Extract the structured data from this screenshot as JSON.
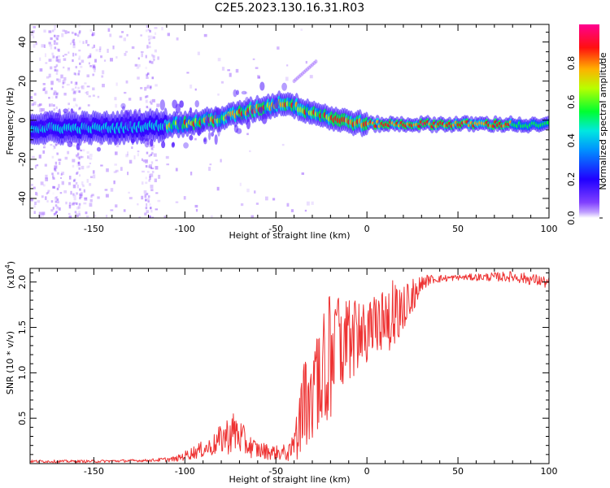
{
  "title": "C2E5.2023.130.16.31.R03",
  "chart_data": [
    {
      "type": "heatmap",
      "xlabel": "Height of straight line (km)",
      "ylabel": "Frequency (Hz)",
      "xlim": [
        -185,
        100
      ],
      "ylim": [
        -50,
        49
      ],
      "x_ticks": [
        -150,
        -100,
        -50,
        0,
        50,
        100
      ],
      "x_tick_labels": [
        "-150",
        "-100",
        "-50",
        "0",
        "50",
        "100"
      ],
      "y_ticks": [
        -40,
        -20,
        0,
        20,
        40
      ],
      "y_tick_labels": [
        "-40",
        "-20",
        "0",
        "20",
        "40"
      ],
      "ridge": {
        "description": "spectral ridge (frequency centre) vs height",
        "x": [
          -185,
          -160,
          -140,
          -120,
          -100,
          -80,
          -60,
          -45,
          -30,
          -15,
          0,
          20,
          50,
          80,
          95,
          100
        ],
        "y": [
          -4,
          -4,
          -4,
          -3,
          -2,
          1,
          6,
          9,
          4,
          0,
          -2,
          -2,
          -2,
          -2,
          -3,
          -2
        ]
      },
      "branch": {
        "x": [
          -40,
          -28
        ],
        "y": [
          20,
          30
        ]
      },
      "colorbar": {
        "label": "Normalized spectral amplitude",
        "range": [
          0,
          1
        ],
        "ticks": [
          0.0,
          0.2,
          0.4,
          0.6,
          0.8
        ],
        "tick_labels": [
          "0.0",
          "0.2",
          "0.4",
          "0.6",
          "0.8"
        ],
        "colormap": "rainbow",
        "stops": [
          "#ffffff",
          "#9060ff",
          "#3000ff",
          "#0080ff",
          "#00e0e0",
          "#00ff40",
          "#c0ff00",
          "#ffb000",
          "#ff2000",
          "#ff0090"
        ]
      }
    },
    {
      "type": "line",
      "xlabel": "Height of straight line (km)",
      "ylabel": "SNR (10 * v/v)",
      "y_exponent_label": "(x10",
      "y_exponent_power": "4",
      "y_exponent_close": ")",
      "xlim": [
        -185,
        100
      ],
      "ylim": [
        0,
        2.15
      ],
      "x_ticks": [
        -150,
        -100,
        -50,
        0,
        50,
        100
      ],
      "x_tick_labels": [
        "-150",
        "-100",
        "-50",
        "0",
        "50",
        "100"
      ],
      "y_ticks": [
        0.5,
        1.0,
        1.5,
        2.0
      ],
      "y_tick_labels": [
        "0.5",
        "1.0",
        "1.5",
        "2.0"
      ],
      "color": "#ee3333",
      "envelope": {
        "description": "approximate upper / lower envelope of the noisy SNR trace (units of 10^4)",
        "x": [
          -185,
          -150,
          -120,
          -105,
          -95,
          -85,
          -78,
          -72,
          -66,
          -60,
          -50,
          -42,
          -38,
          -35,
          -30,
          -25,
          -20,
          -10,
          0,
          10,
          15,
          20,
          25,
          30,
          35,
          50,
          80,
          95,
          100
        ],
        "upper": [
          0.04,
          0.04,
          0.05,
          0.08,
          0.2,
          0.3,
          0.5,
          0.6,
          0.35,
          0.25,
          0.2,
          0.22,
          0.6,
          1.25,
          1.2,
          1.6,
          1.95,
          1.8,
          1.8,
          1.95,
          2.05,
          2.0,
          2.05,
          2.08,
          2.08,
          2.08,
          2.12,
          2.08,
          2.05
        ],
        "lower": [
          0.01,
          0.01,
          0.02,
          0.02,
          0.05,
          0.08,
          0.1,
          0.1,
          0.07,
          0.05,
          0.04,
          0.02,
          0.05,
          0.2,
          0.1,
          0.4,
          0.5,
          0.9,
          1.1,
          1.2,
          1.3,
          1.45,
          1.65,
          1.9,
          1.98,
          2.02,
          2.0,
          1.95,
          1.92
        ]
      }
    }
  ]
}
